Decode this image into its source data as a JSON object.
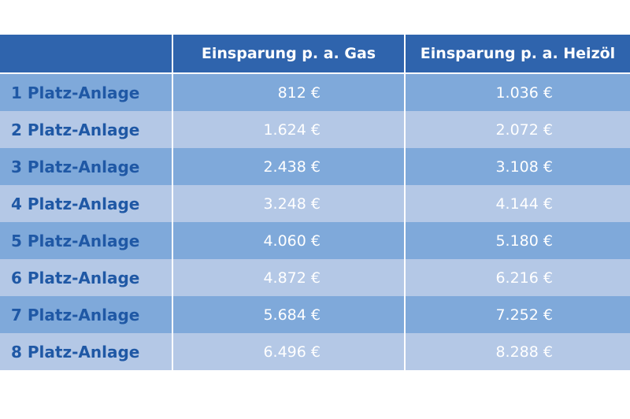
{
  "header": {
    "corner": "",
    "col_gas": "Einsparung p. a. Gas",
    "col_oil": "Einsparung p. a. Heizöl"
  },
  "rows": [
    {
      "label": "1 Platz-Anlage",
      "gas": "812 €",
      "oil": "1.036 €"
    },
    {
      "label": "2 Platz-Anlage",
      "gas": "1.624 €",
      "oil": "2.072 €"
    },
    {
      "label": "3 Platz-Anlage",
      "gas": "2.438 €",
      "oil": "3.108 €"
    },
    {
      "label": "4 Platz-Anlage",
      "gas": "3.248 €",
      "oil": "4.144 €"
    },
    {
      "label": "5 Platz-Anlage",
      "gas": "4.060 €",
      "oil": "5.180 €"
    },
    {
      "label": "6 Platz-Anlage",
      "gas": "4.872 €",
      "oil": "6.216 €"
    },
    {
      "label": "7 Platz-Anlage",
      "gas": "5.684 €",
      "oil": "7.252 €"
    },
    {
      "label": "8 Platz-Anlage",
      "gas": "6.496 €",
      "oil": "8.288 €"
    }
  ],
  "colors": {
    "header": "#2f64ad",
    "row_dark": "#7fa9da",
    "row_light": "#b4c8e6",
    "label_text": "#1f58a5"
  }
}
